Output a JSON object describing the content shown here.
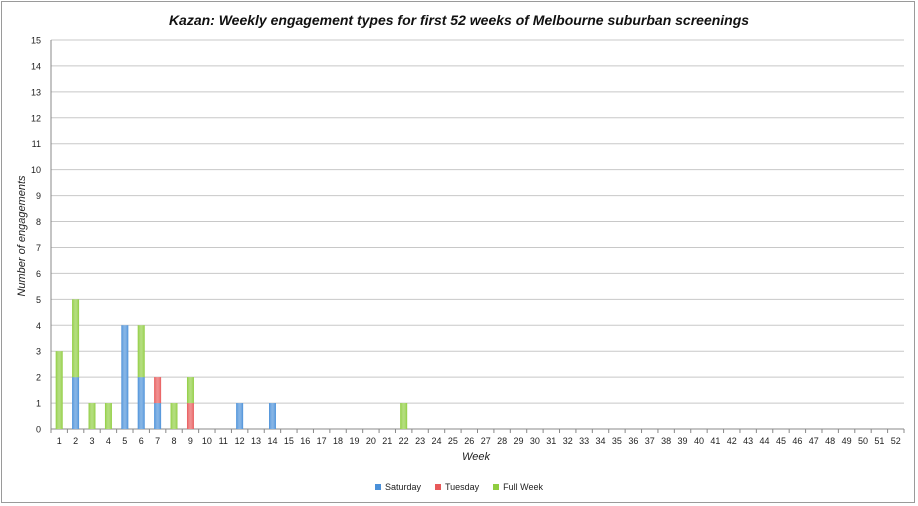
{
  "chart_data": {
    "type": "bar",
    "stacked": true,
    "title": "Kazan: Weekly engagement types for first 52 weeks of Melbourne suburban screenings",
    "xlabel": "Week",
    "ylabel": "Number of engagements",
    "ylim": [
      0,
      15
    ],
    "yticks": [
      "0",
      "1",
      "2",
      "3",
      "4",
      "5",
      "6",
      "7",
      "8",
      "9",
      "10",
      "11",
      "12",
      "13",
      "14",
      "15"
    ],
    "grid": true,
    "legend_position": "bottom",
    "categories": [
      "1",
      "2",
      "3",
      "4",
      "5",
      "6",
      "7",
      "8",
      "9",
      "10",
      "11",
      "12",
      "13",
      "14",
      "15",
      "16",
      "17",
      "18",
      "19",
      "20",
      "21",
      "22",
      "23",
      "24",
      "25",
      "26",
      "27",
      "28",
      "29",
      "30",
      "31",
      "32",
      "33",
      "34",
      "35",
      "36",
      "37",
      "38",
      "39",
      "40",
      "41",
      "42",
      "43",
      "44",
      "45",
      "46",
      "47",
      "48",
      "49",
      "50",
      "51",
      "52"
    ],
    "series": [
      {
        "name": "Saturday",
        "color": "#4a90d9",
        "values": [
          0,
          2,
          0,
          0,
          4,
          2,
          1,
          0,
          0,
          0,
          0,
          1,
          0,
          1,
          0,
          0,
          0,
          0,
          0,
          0,
          0,
          0,
          0,
          0,
          0,
          0,
          0,
          0,
          0,
          0,
          0,
          0,
          0,
          0,
          0,
          0,
          0,
          0,
          0,
          0,
          0,
          0,
          0,
          0,
          0,
          0,
          0,
          0,
          0,
          0,
          0,
          0
        ]
      },
      {
        "name": "Tuesday",
        "color": "#e8595a",
        "values": [
          0,
          0,
          0,
          0,
          0,
          0,
          1,
          0,
          1,
          0,
          0,
          0,
          0,
          0,
          0,
          0,
          0,
          0,
          0,
          0,
          0,
          0,
          0,
          0,
          0,
          0,
          0,
          0,
          0,
          0,
          0,
          0,
          0,
          0,
          0,
          0,
          0,
          0,
          0,
          0,
          0,
          0,
          0,
          0,
          0,
          0,
          0,
          0,
          0,
          0,
          0,
          0
        ]
      },
      {
        "name": "Full Week",
        "color": "#8fcd3f",
        "values": [
          3,
          3,
          1,
          1,
          0,
          2,
          0,
          1,
          1,
          0,
          0,
          0,
          0,
          0,
          0,
          0,
          0,
          0,
          0,
          0,
          0,
          1,
          0,
          0,
          0,
          0,
          0,
          0,
          0,
          0,
          0,
          0,
          0,
          0,
          0,
          0,
          0,
          0,
          0,
          0,
          0,
          0,
          0,
          0,
          0,
          0,
          0,
          0,
          0,
          0,
          0,
          0
        ]
      }
    ]
  }
}
